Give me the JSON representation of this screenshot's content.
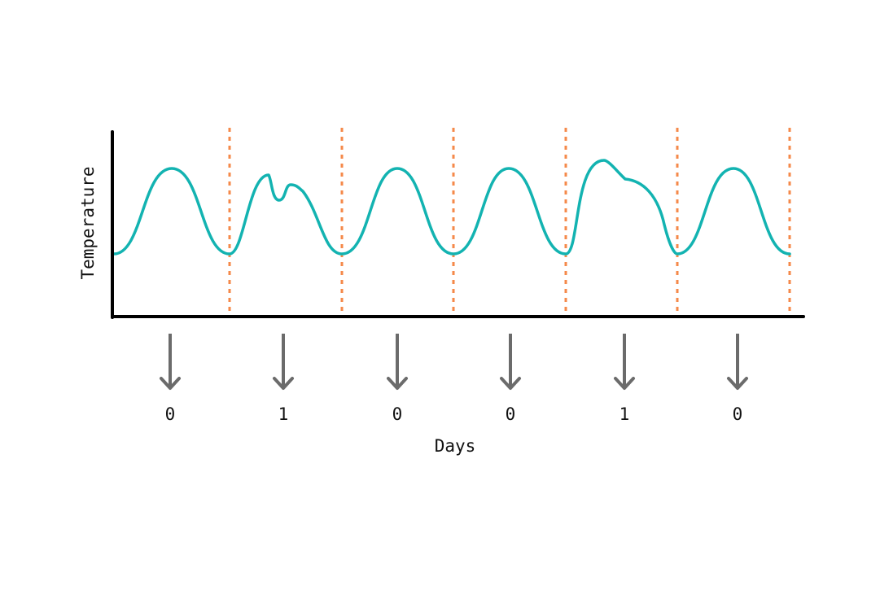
{
  "axes": {
    "y_label": "Temperature",
    "x_label": "Days"
  },
  "days": [
    {
      "label": "0",
      "anomaly": false
    },
    {
      "label": "1",
      "anomaly": true
    },
    {
      "label": "0",
      "anomaly": false
    },
    {
      "label": "0",
      "anomaly": false
    },
    {
      "label": "1",
      "anomaly": true
    },
    {
      "label": "0",
      "anomaly": false
    }
  ],
  "colors": {
    "curve": "#13b3b1",
    "day_boundary": "#f5894a",
    "axis": "#000000",
    "arrow": "#6b6b6b",
    "text": "#111111"
  }
}
